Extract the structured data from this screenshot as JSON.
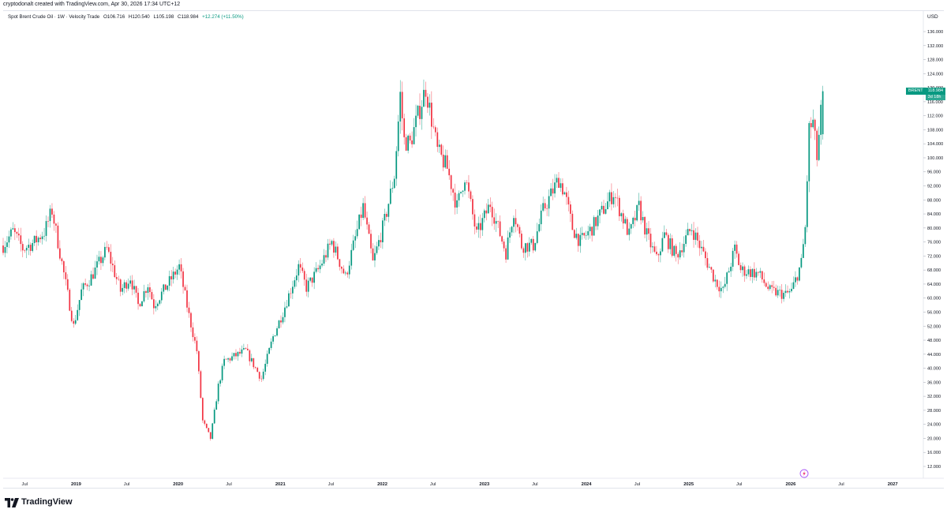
{
  "header": {
    "credit": "cryptodonalt created with TradingView.com, Apr 30, 2026 17:34 UTC+12"
  },
  "legend": {
    "symbol": "Spot Brent Crude Oil · 1W · Velocity Trade",
    "open": "O106.716",
    "high": "H120.540",
    "low": "L105.198",
    "close": "C118.984",
    "change": "+12.274 (+11.50%)"
  },
  "price_label": {
    "ticker": "BRENT",
    "price": "118.984",
    "countdown": "3d 18h"
  },
  "footer": {
    "brand": "TradingView"
  },
  "colors": {
    "up": "#089981",
    "down": "#f23645",
    "wick": "#9598a1",
    "label": "#089981"
  },
  "icons": {
    "replay": "lightning-icon"
  },
  "chart_data": {
    "type": "candlestick",
    "title": "Spot Brent Crude Oil · 1W · Velocity Trade",
    "ylabel": "USD",
    "ylim": [
      12,
      136
    ],
    "yticks": [
      136,
      132,
      128,
      124,
      120,
      116,
      112,
      108,
      104,
      100,
      96,
      92,
      88,
      84,
      80,
      76,
      72,
      68,
      64,
      60,
      56,
      52,
      48,
      44,
      40,
      36,
      32,
      28,
      24,
      20,
      16,
      12
    ],
    "xticks": [
      {
        "label": "Jul",
        "date": "2018-07-01"
      },
      {
        "label": "2019",
        "date": "2019-01-01"
      },
      {
        "label": "Jul",
        "date": "2019-07-01"
      },
      {
        "label": "2020",
        "date": "2020-01-01"
      },
      {
        "label": "Jul",
        "date": "2020-07-01"
      },
      {
        "label": "2021",
        "date": "2021-01-01"
      },
      {
        "label": "Jul",
        "date": "2021-07-01"
      },
      {
        "label": "2022",
        "date": "2022-01-01"
      },
      {
        "label": "Jul",
        "date": "2022-07-01"
      },
      {
        "label": "2023",
        "date": "2023-01-01"
      },
      {
        "label": "Jul",
        "date": "2023-07-01"
      },
      {
        "label": "2024",
        "date": "2024-01-01"
      },
      {
        "label": "Jul",
        "date": "2024-07-01"
      },
      {
        "label": "2025",
        "date": "2025-01-01"
      },
      {
        "label": "Jul",
        "date": "2025-07-01"
      },
      {
        "label": "2026",
        "date": "2026-01-01"
      },
      {
        "label": "Jul",
        "date": "2026-07-01"
      },
      {
        "label": "2027",
        "date": "2027-01-01"
      }
    ],
    "xrange": [
      "2018-04-15",
      "2027-04-15"
    ],
    "anchors": [
      [
        "2018-04-15",
        75
      ],
      [
        "2018-05-20",
        79
      ],
      [
        "2018-06-25",
        74
      ],
      [
        "2018-08-05",
        76
      ],
      [
        "2018-09-10",
        79
      ],
      [
        "2018-10-07",
        85
      ],
      [
        "2018-11-11",
        70
      ],
      [
        "2018-12-23",
        52
      ],
      [
        "2019-01-20",
        62
      ],
      [
        "2019-02-24",
        66
      ],
      [
        "2019-04-21",
        74
      ],
      [
        "2019-06-09",
        62
      ],
      [
        "2019-07-14",
        66
      ],
      [
        "2019-08-11",
        58
      ],
      [
        "2019-09-15",
        64
      ],
      [
        "2019-10-06",
        58
      ],
      [
        "2019-11-17",
        63
      ],
      [
        "2020-01-05",
        69
      ],
      [
        "2020-02-09",
        55
      ],
      [
        "2020-03-08",
        45
      ],
      [
        "2020-03-29",
        25
      ],
      [
        "2020-04-26",
        20
      ],
      [
        "2020-05-24",
        35
      ],
      [
        "2020-06-14",
        42
      ],
      [
        "2020-08-30",
        45
      ],
      [
        "2020-10-25",
        37
      ],
      [
        "2020-12-06",
        49
      ],
      [
        "2021-01-10",
        56
      ],
      [
        "2021-03-07",
        69
      ],
      [
        "2021-04-04",
        63
      ],
      [
        "2021-05-16",
        68
      ],
      [
        "2021-07-04",
        76
      ],
      [
        "2021-08-22",
        66
      ],
      [
        "2021-10-24",
        86
      ],
      [
        "2021-11-28",
        70
      ],
      [
        "2022-01-09",
        82
      ],
      [
        "2022-02-13",
        95
      ],
      [
        "2022-03-06",
        118
      ],
      [
        "2022-03-20",
        105
      ],
      [
        "2022-04-10",
        104
      ],
      [
        "2022-05-08",
        112
      ],
      [
        "2022-06-05",
        120
      ],
      [
        "2022-07-17",
        102
      ],
      [
        "2022-08-21",
        97
      ],
      [
        "2022-09-25",
        86
      ],
      [
        "2022-10-23",
        95
      ],
      [
        "2022-12-04",
        78
      ],
      [
        "2023-01-22",
        87
      ],
      [
        "2023-03-19",
        73
      ],
      [
        "2023-04-16",
        85
      ],
      [
        "2023-05-14",
        75
      ],
      [
        "2023-06-25",
        75
      ],
      [
        "2023-07-30",
        85
      ],
      [
        "2023-09-24",
        94
      ],
      [
        "2023-10-15",
        90
      ],
      [
        "2023-11-12",
        80
      ],
      [
        "2023-12-10",
        76
      ],
      [
        "2024-01-21",
        80
      ],
      [
        "2024-04-07",
        90
      ],
      [
        "2024-06-02",
        78
      ],
      [
        "2024-07-07",
        86
      ],
      [
        "2024-08-04",
        78
      ],
      [
        "2024-09-08",
        71
      ],
      [
        "2024-10-06",
        78
      ],
      [
        "2024-11-17",
        72
      ],
      [
        "2025-01-12",
        80
      ],
      [
        "2025-03-09",
        70
      ],
      [
        "2025-04-06",
        65
      ],
      [
        "2025-05-04",
        62
      ],
      [
        "2025-06-15",
        74
      ],
      [
        "2025-07-06",
        68
      ],
      [
        "2025-09-07",
        67
      ],
      [
        "2025-10-19",
        62
      ],
      [
        "2025-12-14",
        61
      ],
      [
        "2026-01-04",
        62
      ],
      [
        "2026-02-08",
        70
      ],
      [
        "2026-02-22",
        80
      ],
      [
        "2026-03-08",
        108
      ],
      [
        "2026-03-22",
        110
      ],
      [
        "2026-04-05",
        100
      ],
      [
        "2026-04-26",
        118.98
      ]
    ],
    "last_candle": {
      "open": 106.716,
      "high": 120.54,
      "low": 105.198,
      "close": 118.984
    }
  }
}
